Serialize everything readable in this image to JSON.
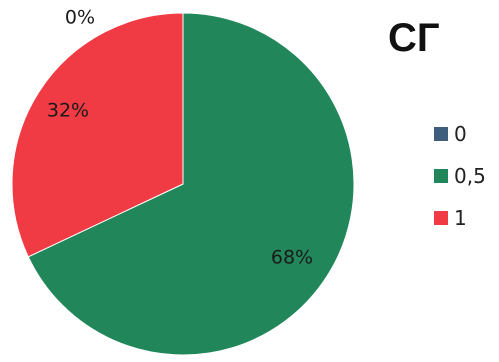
{
  "chart_data": {
    "type": "pie",
    "title": "СГ",
    "legend_position": "right",
    "slices": [
      {
        "name": "0",
        "value": 0,
        "label": "0%",
        "color": "#3F5E7E"
      },
      {
        "name": "0,5",
        "value": 68,
        "label": "68%",
        "color": "#21875A"
      },
      {
        "name": "1",
        "value": 32,
        "label": "32%",
        "color": "#F03A44"
      }
    ]
  }
}
